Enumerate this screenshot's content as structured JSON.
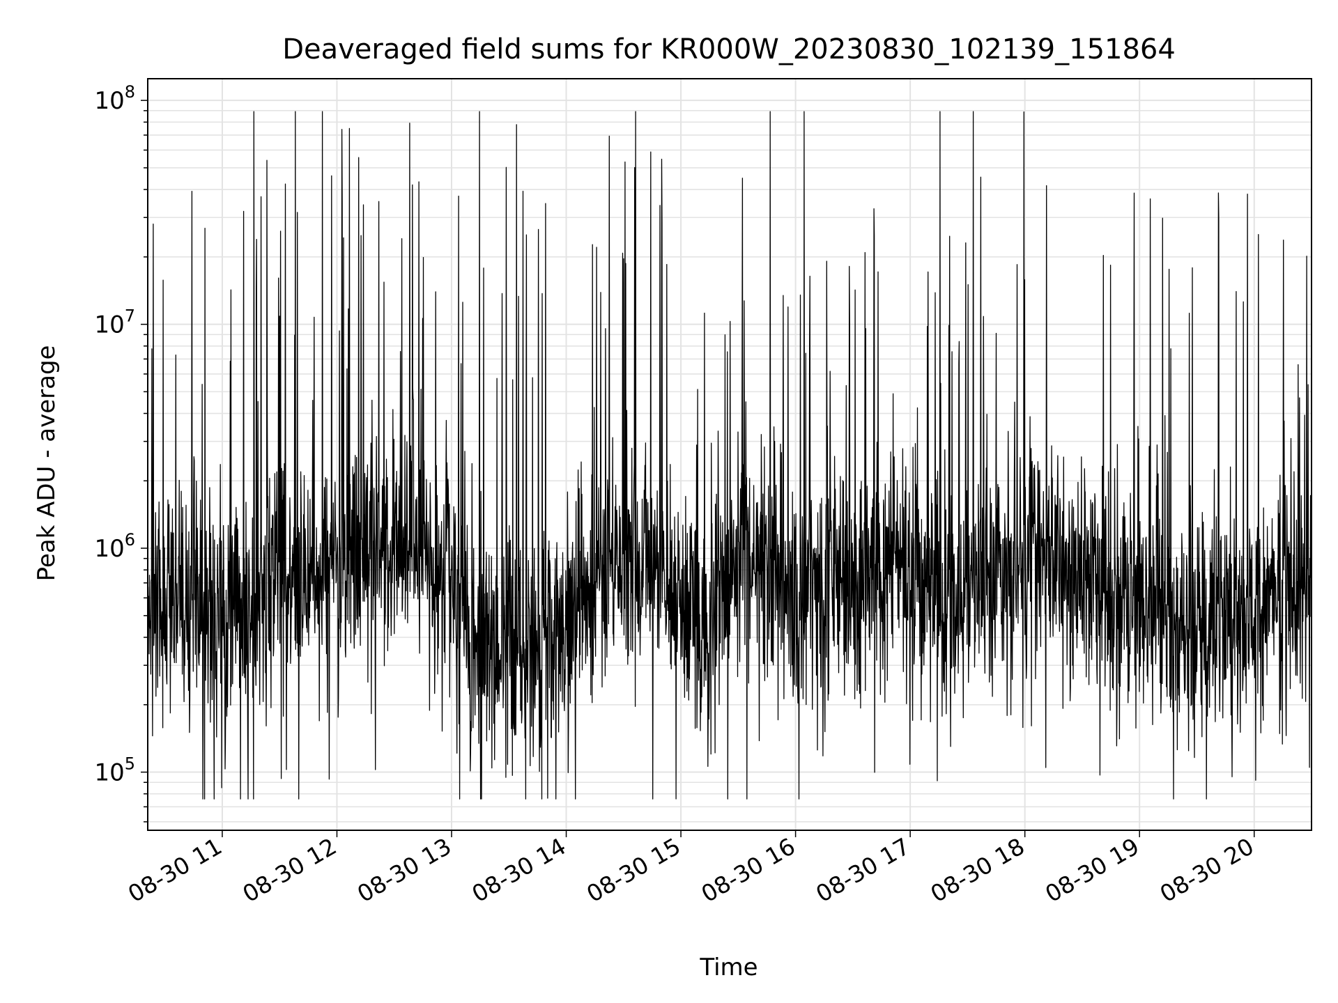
{
  "chart_data": {
    "type": "line",
    "title": "Deaveraged field sums for KR000W_20230830_102139_151864",
    "xlabel": "Time",
    "ylabel": "Peak ADU - average",
    "y_scale": "log",
    "ylim": [
      55000,
      125000000
    ],
    "xlim": [
      "08-30 10:21",
      "08-30 20:30"
    ],
    "grid": true,
    "line_color": "#000000",
    "x_ticks": [
      "08-30 11",
      "08-30 12",
      "08-30 13",
      "08-30 14",
      "08-30 15",
      "08-30 16",
      "08-30 17",
      "08-30 18",
      "08-30 19",
      "08-30 20"
    ],
    "y_ticks": [
      {
        "base": "10",
        "exp": "5",
        "value": 100000
      },
      {
        "base": "10",
        "exp": "6",
        "value": 1000000
      },
      {
        "base": "10",
        "exp": "7",
        "value": 10000000
      },
      {
        "base": "10",
        "exp": "8",
        "value": 100000000
      }
    ],
    "series": [
      {
        "x": [
          "08-30 10:21",
          "08-30 10:30",
          "08-30 10:45",
          "08-30 11:00",
          "08-30 11:15",
          "08-30 11:30",
          "08-30 11:45",
          "08-30 12:00",
          "08-30 12:15",
          "08-30 12:30",
          "08-30 12:45",
          "08-30 13:00",
          "08-30 13:15",
          "08-30 13:30",
          "08-30 13:45",
          "08-30 14:00",
          "08-30 14:15",
          "08-30 14:30",
          "08-30 14:45",
          "08-30 15:00",
          "08-30 15:15",
          "08-30 15:30",
          "08-30 15:45",
          "08-30 16:00",
          "08-30 16:15",
          "08-30 16:30",
          "08-30 16:45",
          "08-30 17:00",
          "08-30 17:15",
          "08-30 17:30",
          "08-30 17:45",
          "08-30 18:00",
          "08-30 18:15",
          "08-30 18:30",
          "08-30 18:45",
          "08-30 19:00",
          "08-30 19:15",
          "08-30 19:30",
          "08-30 19:45",
          "08-30 20:00",
          "08-30 20:15",
          "08-30 20:30"
        ],
        "y": [
          600000,
          500000,
          650000,
          500000,
          600000,
          700000,
          650000,
          900000,
          1000000,
          900000,
          1000000,
          600000,
          350000,
          400000,
          380000,
          500000,
          800000,
          900000,
          850000,
          500000,
          450000,
          1000000,
          800000,
          600000,
          700000,
          650000,
          800000,
          900000,
          600000,
          650000,
          800000,
          900000,
          1000000,
          800000,
          650000,
          600000,
          500000,
          450000,
          500000,
          500000,
          600000,
          700000
        ]
      }
    ]
  }
}
